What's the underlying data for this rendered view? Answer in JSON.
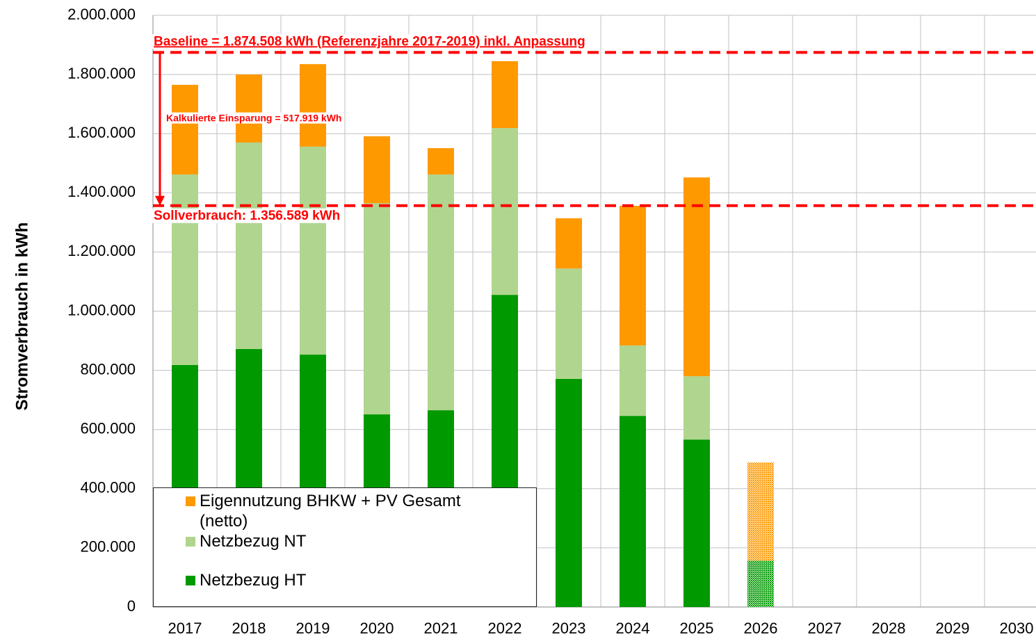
{
  "chart_data": {
    "type": "stacked_bar",
    "y_label": "Stromverbrauch in kWh",
    "categories": [
      "2017",
      "2018",
      "2019",
      "2020",
      "2021",
      "2022",
      "2023",
      "2024",
      "2025",
      "2026",
      "2027",
      "2028",
      "2029",
      "2030"
    ],
    "series": [
      {
        "name": "Netzbezug HT",
        "color": "#009900",
        "values": [
          818000,
          872000,
          853000,
          651000,
          665000,
          1055000,
          771000,
          646000,
          566000,
          157000,
          null,
          null,
          null,
          null
        ]
      },
      {
        "name": "Netzbezug NT",
        "color": "#b0d58e",
        "values": [
          644000,
          698000,
          703000,
          714000,
          797000,
          564000,
          373000,
          238000,
          214000,
          0,
          null,
          null,
          null,
          null
        ]
      },
      {
        "name": "Eigennutzung BHKW + PV Gesamt (netto)",
        "color": "#ff9900",
        "values": [
          303000,
          230000,
          279000,
          226000,
          89000,
          226000,
          170000,
          472000,
          672000,
          332000,
          null,
          null,
          null,
          null
        ]
      }
    ],
    "hatched": [
      false,
      false,
      false,
      false,
      false,
      false,
      false,
      false,
      false,
      true,
      false,
      false,
      false,
      false
    ],
    "ylim": [
      0,
      2000000
    ],
    "yticks": [
      0,
      {
        "value": 200000,
        "label": "200.000"
      },
      {
        "value": 400000,
        "label": "400.000"
      },
      {
        "value": 600000,
        "label": "600.000"
      },
      {
        "value": 800000,
        "label": "800.000"
      },
      {
        "value": 1000000,
        "label": "1.000.000"
      },
      {
        "value": 1200000,
        "label": "1.200.000"
      },
      {
        "value": 1400000,
        "label": "1.400.000"
      },
      {
        "value": 1600000,
        "label": "1.600.000"
      },
      {
        "value": 1800000,
        "label": "1.800.000"
      },
      {
        "value": 2000000,
        "label": "2.000.000"
      }
    ],
    "grid": true,
    "reference_lines": [
      {
        "value": 1874508,
        "label": "Baseline = 1.874.508 kWh (Referenzjahre 2017-2019) inkl. Anpassung",
        "color": "#ff0000"
      },
      {
        "value": 1356589,
        "label": "Sollverbrauch: 1.356.589 kWh",
        "color": "#ff0000"
      }
    ],
    "savings_annotation": "Kalkulierte Einsparung = 517.919 kWh"
  }
}
